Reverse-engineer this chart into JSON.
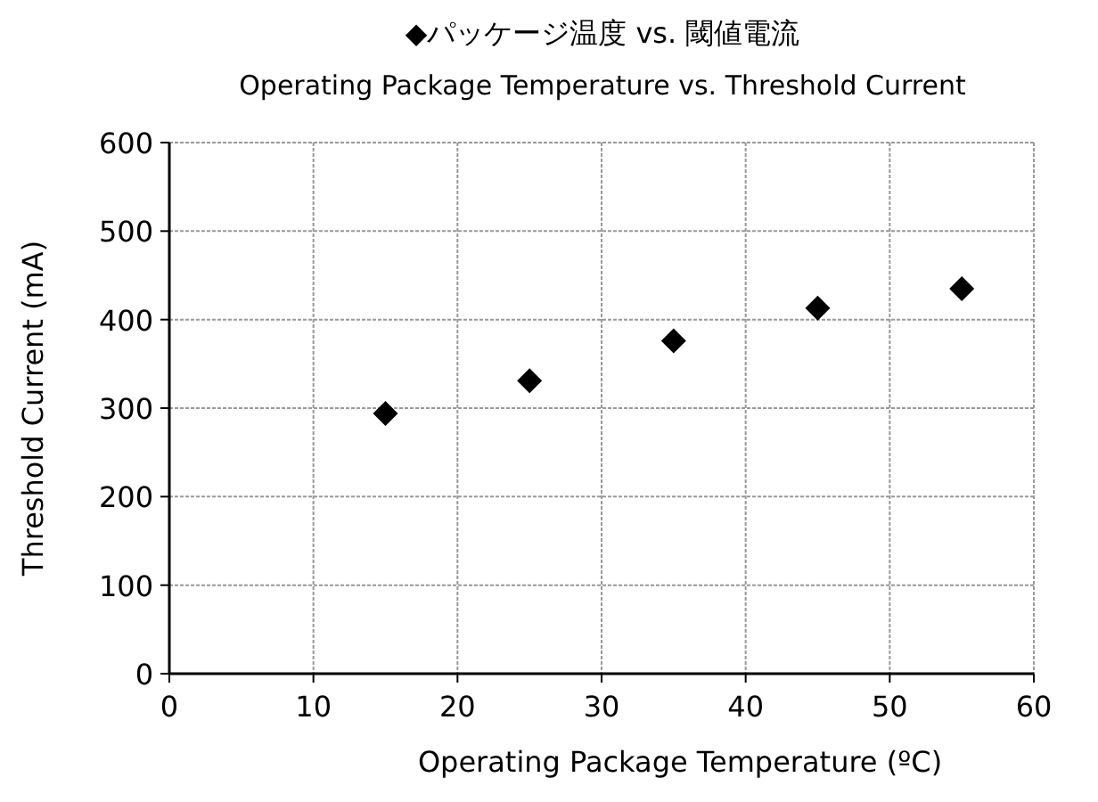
{
  "chart_data": {
    "type": "scatter",
    "title": "◆パッケージ温度 vs. 閾値電流",
    "subtitle": "Operating Package Temperature vs. Threshold Current",
    "xlabel": "Operating Package Temperature (ºC)",
    "ylabel": "Threshold Current (mA)",
    "x": [
      15,
      25,
      35,
      45,
      55
    ],
    "series": [
      {
        "color": "#000000",
        "values": [
          294,
          331,
          376,
          413,
          435
        ]
      }
    ],
    "xlim": [
      0,
      60
    ],
    "xticks": [
      0,
      10,
      20,
      30,
      40,
      50,
      60
    ],
    "ylim": [
      0,
      600
    ],
    "yticks": [
      0,
      100,
      200,
      300,
      400,
      500,
      600
    ],
    "grid": true,
    "marker": "diamond"
  }
}
